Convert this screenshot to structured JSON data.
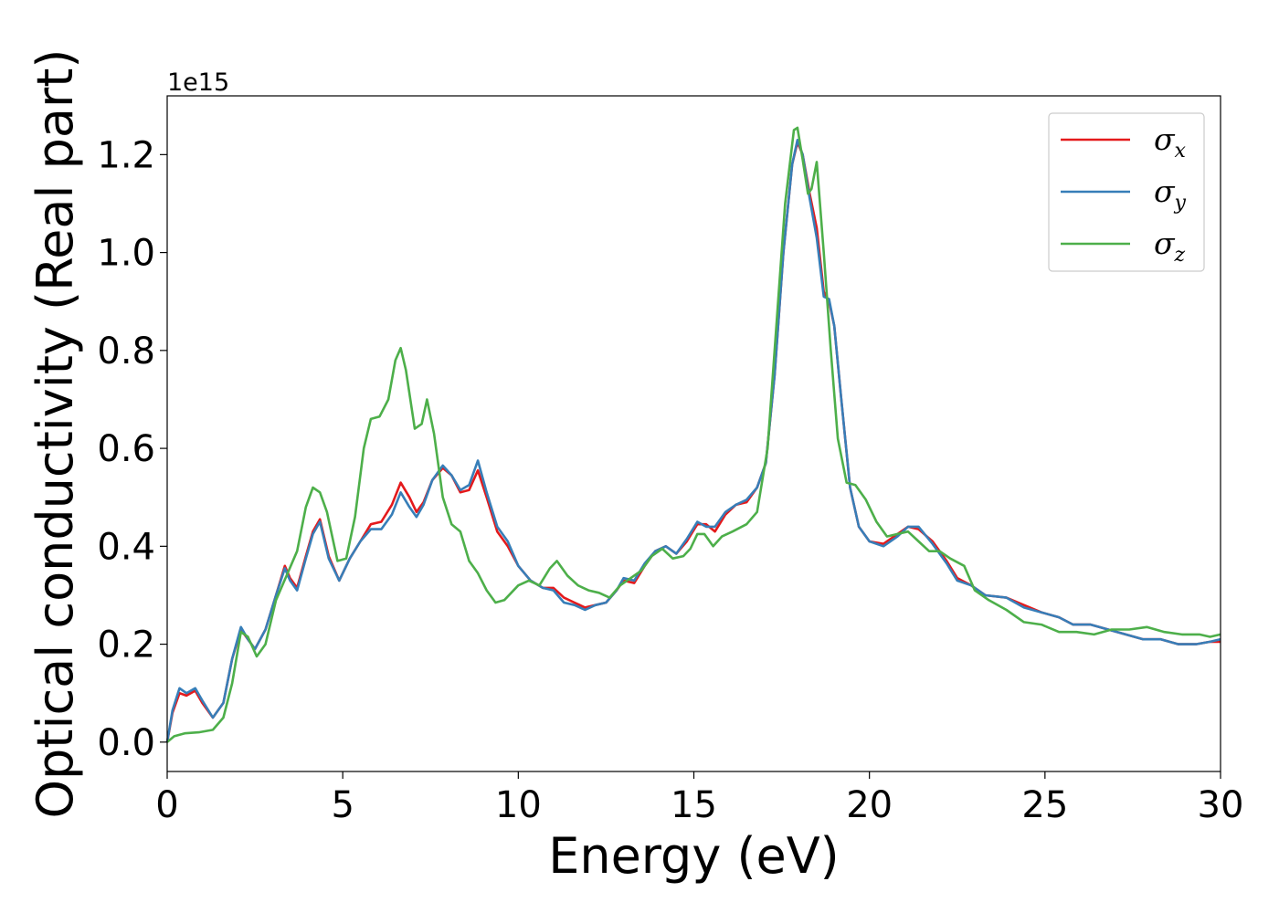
{
  "chart_data": {
    "type": "line",
    "xlabel": "Energy (eV)",
    "ylabel": "Optical conductivity (Real part)",
    "y_offset_text": "1e15",
    "xlim": [
      0,
      30
    ],
    "ylim": [
      -0.06,
      1.32
    ],
    "x_ticks": [
      0,
      5,
      10,
      15,
      20,
      25,
      30
    ],
    "x_tick_labels": [
      "0",
      "5",
      "10",
      "15",
      "20",
      "25",
      "30"
    ],
    "y_ticks": [
      0.0,
      0.2,
      0.4,
      0.6,
      0.8,
      1.0,
      1.2
    ],
    "y_tick_labels": [
      "0.0",
      "0.2",
      "0.4",
      "0.6",
      "0.8",
      "1.0",
      "1.2"
    ],
    "grid": false,
    "legend_position": "top-right",
    "series": [
      {
        "name": "σx",
        "symbol": "σ",
        "subscript": "x",
        "color": "#e41a1c",
        "points": [
          [
            0,
            0
          ],
          [
            0.15,
            0.06
          ],
          [
            0.35,
            0.1
          ],
          [
            0.55,
            0.095
          ],
          [
            0.8,
            0.105
          ],
          [
            1.0,
            0.08
          ],
          [
            1.3,
            0.05
          ],
          [
            1.6,
            0.08
          ],
          [
            1.85,
            0.17
          ],
          [
            2.1,
            0.23
          ],
          [
            2.3,
            0.21
          ],
          [
            2.5,
            0.19
          ],
          [
            2.8,
            0.23
          ],
          [
            3.1,
            0.3
          ],
          [
            3.35,
            0.36
          ],
          [
            3.5,
            0.335
          ],
          [
            3.7,
            0.315
          ],
          [
            3.95,
            0.38
          ],
          [
            4.15,
            0.43
          ],
          [
            4.35,
            0.455
          ],
          [
            4.6,
            0.38
          ],
          [
            4.9,
            0.33
          ],
          [
            5.2,
            0.375
          ],
          [
            5.5,
            0.41
          ],
          [
            5.8,
            0.445
          ],
          [
            6.1,
            0.45
          ],
          [
            6.4,
            0.485
          ],
          [
            6.65,
            0.53
          ],
          [
            6.9,
            0.5
          ],
          [
            7.1,
            0.47
          ],
          [
            7.3,
            0.49
          ],
          [
            7.55,
            0.535
          ],
          [
            7.85,
            0.56
          ],
          [
            8.1,
            0.545
          ],
          [
            8.35,
            0.51
          ],
          [
            8.6,
            0.515
          ],
          [
            8.85,
            0.555
          ],
          [
            9.1,
            0.5
          ],
          [
            9.4,
            0.43
          ],
          [
            9.7,
            0.4
          ],
          [
            10.0,
            0.36
          ],
          [
            10.35,
            0.33
          ],
          [
            10.7,
            0.315
          ],
          [
            11.0,
            0.315
          ],
          [
            11.3,
            0.295
          ],
          [
            11.6,
            0.285
          ],
          [
            11.9,
            0.275
          ],
          [
            12.2,
            0.28
          ],
          [
            12.5,
            0.285
          ],
          [
            12.8,
            0.31
          ],
          [
            13.0,
            0.33
          ],
          [
            13.3,
            0.325
          ],
          [
            13.6,
            0.36
          ],
          [
            13.9,
            0.39
          ],
          [
            14.2,
            0.4
          ],
          [
            14.5,
            0.385
          ],
          [
            14.8,
            0.41
          ],
          [
            15.1,
            0.445
          ],
          [
            15.35,
            0.445
          ],
          [
            15.6,
            0.43
          ],
          [
            15.9,
            0.465
          ],
          [
            16.2,
            0.485
          ],
          [
            16.5,
            0.49
          ],
          [
            16.8,
            0.52
          ],
          [
            17.05,
            0.57
          ],
          [
            17.3,
            0.75
          ],
          [
            17.55,
            1.0
          ],
          [
            17.8,
            1.18
          ],
          [
            17.95,
            1.225
          ],
          [
            18.1,
            1.2
          ],
          [
            18.3,
            1.12
          ],
          [
            18.5,
            1.05
          ],
          [
            18.7,
            0.92
          ],
          [
            18.85,
            0.9
          ],
          [
            19.0,
            0.85
          ],
          [
            19.2,
            0.7
          ],
          [
            19.45,
            0.52
          ],
          [
            19.7,
            0.44
          ],
          [
            20.0,
            0.41
          ],
          [
            20.4,
            0.405
          ],
          [
            20.8,
            0.425
          ],
          [
            21.1,
            0.44
          ],
          [
            21.4,
            0.435
          ],
          [
            21.8,
            0.41
          ],
          [
            22.2,
            0.37
          ],
          [
            22.5,
            0.335
          ],
          [
            22.9,
            0.32
          ],
          [
            23.3,
            0.3
          ],
          [
            23.9,
            0.295
          ],
          [
            24.4,
            0.28
          ],
          [
            24.9,
            0.265
          ],
          [
            25.4,
            0.255
          ],
          [
            25.8,
            0.24
          ],
          [
            26.3,
            0.24
          ],
          [
            26.8,
            0.23
          ],
          [
            27.3,
            0.22
          ],
          [
            27.8,
            0.21
          ],
          [
            28.3,
            0.21
          ],
          [
            28.8,
            0.2
          ],
          [
            29.3,
            0.2
          ],
          [
            29.7,
            0.205
          ],
          [
            30,
            0.205
          ]
        ]
      },
      {
        "name": "σy",
        "symbol": "σ",
        "subscript": "y",
        "color": "#377eb8",
        "points": [
          [
            0,
            0
          ],
          [
            0.15,
            0.065
          ],
          [
            0.35,
            0.11
          ],
          [
            0.55,
            0.1
          ],
          [
            0.8,
            0.11
          ],
          [
            1.0,
            0.085
          ],
          [
            1.3,
            0.05
          ],
          [
            1.6,
            0.08
          ],
          [
            1.85,
            0.17
          ],
          [
            2.1,
            0.235
          ],
          [
            2.3,
            0.21
          ],
          [
            2.5,
            0.19
          ],
          [
            2.8,
            0.23
          ],
          [
            3.1,
            0.3
          ],
          [
            3.35,
            0.355
          ],
          [
            3.5,
            0.33
          ],
          [
            3.7,
            0.31
          ],
          [
            3.95,
            0.375
          ],
          [
            4.15,
            0.425
          ],
          [
            4.35,
            0.45
          ],
          [
            4.6,
            0.375
          ],
          [
            4.9,
            0.33
          ],
          [
            5.2,
            0.375
          ],
          [
            5.5,
            0.41
          ],
          [
            5.8,
            0.435
          ],
          [
            6.1,
            0.435
          ],
          [
            6.4,
            0.465
          ],
          [
            6.65,
            0.51
          ],
          [
            6.9,
            0.48
          ],
          [
            7.1,
            0.46
          ],
          [
            7.3,
            0.485
          ],
          [
            7.55,
            0.535
          ],
          [
            7.85,
            0.565
          ],
          [
            8.1,
            0.545
          ],
          [
            8.35,
            0.515
          ],
          [
            8.6,
            0.525
          ],
          [
            8.85,
            0.575
          ],
          [
            9.1,
            0.51
          ],
          [
            9.4,
            0.44
          ],
          [
            9.7,
            0.41
          ],
          [
            10.0,
            0.36
          ],
          [
            10.35,
            0.33
          ],
          [
            10.7,
            0.315
          ],
          [
            11.0,
            0.31
          ],
          [
            11.3,
            0.285
          ],
          [
            11.6,
            0.28
          ],
          [
            11.9,
            0.27
          ],
          [
            12.2,
            0.28
          ],
          [
            12.5,
            0.285
          ],
          [
            12.8,
            0.31
          ],
          [
            13.0,
            0.335
          ],
          [
            13.3,
            0.33
          ],
          [
            13.6,
            0.365
          ],
          [
            13.9,
            0.39
          ],
          [
            14.2,
            0.4
          ],
          [
            14.5,
            0.385
          ],
          [
            14.8,
            0.415
          ],
          [
            15.1,
            0.45
          ],
          [
            15.35,
            0.44
          ],
          [
            15.6,
            0.44
          ],
          [
            15.9,
            0.47
          ],
          [
            16.2,
            0.485
          ],
          [
            16.5,
            0.495
          ],
          [
            16.8,
            0.52
          ],
          [
            17.05,
            0.57
          ],
          [
            17.3,
            0.75
          ],
          [
            17.55,
            1.0
          ],
          [
            17.8,
            1.18
          ],
          [
            17.95,
            1.23
          ],
          [
            18.1,
            1.2
          ],
          [
            18.3,
            1.11
          ],
          [
            18.5,
            1.03
          ],
          [
            18.7,
            0.91
          ],
          [
            18.85,
            0.905
          ],
          [
            19.0,
            0.85
          ],
          [
            19.2,
            0.7
          ],
          [
            19.45,
            0.52
          ],
          [
            19.7,
            0.44
          ],
          [
            20.0,
            0.41
          ],
          [
            20.4,
            0.4
          ],
          [
            20.8,
            0.42
          ],
          [
            21.1,
            0.44
          ],
          [
            21.4,
            0.44
          ],
          [
            21.8,
            0.405
          ],
          [
            22.2,
            0.365
          ],
          [
            22.5,
            0.33
          ],
          [
            22.9,
            0.32
          ],
          [
            23.3,
            0.3
          ],
          [
            23.9,
            0.295
          ],
          [
            24.4,
            0.275
          ],
          [
            24.9,
            0.265
          ],
          [
            25.4,
            0.255
          ],
          [
            25.8,
            0.24
          ],
          [
            26.3,
            0.24
          ],
          [
            26.8,
            0.23
          ],
          [
            27.3,
            0.22
          ],
          [
            27.8,
            0.21
          ],
          [
            28.3,
            0.21
          ],
          [
            28.8,
            0.2
          ],
          [
            29.3,
            0.2
          ],
          [
            29.7,
            0.205
          ],
          [
            30,
            0.21
          ]
        ]
      },
      {
        "name": "σz",
        "symbol": "σ",
        "subscript": "z",
        "color": "#4daf4a",
        "points": [
          [
            0,
            0
          ],
          [
            0.2,
            0.012
          ],
          [
            0.5,
            0.018
          ],
          [
            0.9,
            0.02
          ],
          [
            1.3,
            0.025
          ],
          [
            1.6,
            0.05
          ],
          [
            1.85,
            0.12
          ],
          [
            2.1,
            0.225
          ],
          [
            2.3,
            0.215
          ],
          [
            2.55,
            0.175
          ],
          [
            2.8,
            0.2
          ],
          [
            3.1,
            0.29
          ],
          [
            3.4,
            0.34
          ],
          [
            3.7,
            0.39
          ],
          [
            3.95,
            0.48
          ],
          [
            4.15,
            0.52
          ],
          [
            4.35,
            0.51
          ],
          [
            4.55,
            0.47
          ],
          [
            4.85,
            0.37
          ],
          [
            5.1,
            0.375
          ],
          [
            5.35,
            0.46
          ],
          [
            5.6,
            0.6
          ],
          [
            5.8,
            0.66
          ],
          [
            6.05,
            0.665
          ],
          [
            6.3,
            0.7
          ],
          [
            6.5,
            0.78
          ],
          [
            6.65,
            0.805
          ],
          [
            6.8,
            0.76
          ],
          [
            7.05,
            0.64
          ],
          [
            7.25,
            0.65
          ],
          [
            7.4,
            0.7
          ],
          [
            7.6,
            0.63
          ],
          [
            7.85,
            0.5
          ],
          [
            8.1,
            0.445
          ],
          [
            8.35,
            0.43
          ],
          [
            8.6,
            0.37
          ],
          [
            8.85,
            0.345
          ],
          [
            9.1,
            0.31
          ],
          [
            9.35,
            0.285
          ],
          [
            9.6,
            0.29
          ],
          [
            10.0,
            0.32
          ],
          [
            10.3,
            0.33
          ],
          [
            10.6,
            0.32
          ],
          [
            10.9,
            0.355
          ],
          [
            11.1,
            0.37
          ],
          [
            11.4,
            0.34
          ],
          [
            11.7,
            0.32
          ],
          [
            12.0,
            0.31
          ],
          [
            12.3,
            0.305
          ],
          [
            12.6,
            0.295
          ],
          [
            12.9,
            0.32
          ],
          [
            13.2,
            0.335
          ],
          [
            13.5,
            0.35
          ],
          [
            13.8,
            0.38
          ],
          [
            14.1,
            0.395
          ],
          [
            14.4,
            0.375
          ],
          [
            14.7,
            0.38
          ],
          [
            14.9,
            0.395
          ],
          [
            15.1,
            0.425
          ],
          [
            15.3,
            0.425
          ],
          [
            15.55,
            0.4
          ],
          [
            15.8,
            0.42
          ],
          [
            16.1,
            0.43
          ],
          [
            16.5,
            0.445
          ],
          [
            16.8,
            0.47
          ],
          [
            17.1,
            0.6
          ],
          [
            17.35,
            0.85
          ],
          [
            17.6,
            1.1
          ],
          [
            17.85,
            1.25
          ],
          [
            17.95,
            1.255
          ],
          [
            18.1,
            1.19
          ],
          [
            18.25,
            1.12
          ],
          [
            18.35,
            1.13
          ],
          [
            18.5,
            1.185
          ],
          [
            18.7,
            1.0
          ],
          [
            18.9,
            0.8
          ],
          [
            19.1,
            0.62
          ],
          [
            19.35,
            0.53
          ],
          [
            19.6,
            0.525
          ],
          [
            19.9,
            0.495
          ],
          [
            20.2,
            0.45
          ],
          [
            20.5,
            0.42
          ],
          [
            20.8,
            0.425
          ],
          [
            21.1,
            0.43
          ],
          [
            21.4,
            0.41
          ],
          [
            21.7,
            0.39
          ],
          [
            22.0,
            0.39
          ],
          [
            22.3,
            0.375
          ],
          [
            22.7,
            0.36
          ],
          [
            23.0,
            0.31
          ],
          [
            23.4,
            0.29
          ],
          [
            23.9,
            0.27
          ],
          [
            24.4,
            0.245
          ],
          [
            24.9,
            0.24
          ],
          [
            25.4,
            0.225
          ],
          [
            25.9,
            0.225
          ],
          [
            26.4,
            0.22
          ],
          [
            26.9,
            0.23
          ],
          [
            27.4,
            0.23
          ],
          [
            27.9,
            0.235
          ],
          [
            28.4,
            0.225
          ],
          [
            28.9,
            0.22
          ],
          [
            29.4,
            0.22
          ],
          [
            29.7,
            0.215
          ],
          [
            30,
            0.22
          ]
        ]
      }
    ]
  }
}
